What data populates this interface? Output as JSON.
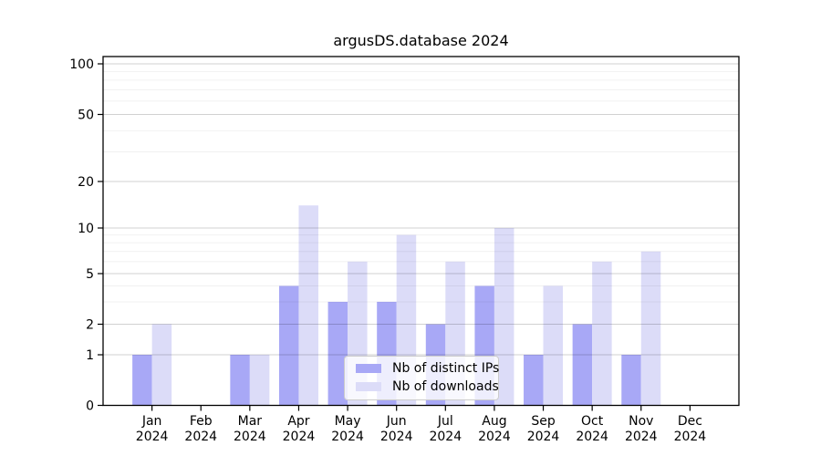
{
  "chart_data": {
    "type": "bar",
    "title": "argusDS.database 2024",
    "categories": [
      "Jan",
      "Feb",
      "Mar",
      "Apr",
      "May",
      "Jun",
      "Jul",
      "Aug",
      "Sep",
      "Oct",
      "Nov",
      "Dec"
    ],
    "category_year": "2024",
    "series": [
      {
        "name": "Nb of distinct IPs",
        "color": "#a8a8f6",
        "values": [
          1,
          0,
          1,
          4,
          3,
          3,
          2,
          4,
          1,
          2,
          1,
          0
        ]
      },
      {
        "name": "Nb of downloads",
        "color": "#dcdcf8",
        "values": [
          2,
          0,
          1,
          14,
          6,
          9,
          6,
          10,
          4,
          6,
          7,
          0
        ]
      }
    ],
    "yscale": "symlog",
    "yticks": [
      0,
      1,
      2,
      5,
      10,
      20,
      50,
      100
    ],
    "minor_yticks": [
      3,
      4,
      6,
      7,
      8,
      9,
      30,
      40,
      60,
      70,
      80,
      90
    ],
    "ylim": [
      0,
      120
    ],
    "xlabel": "",
    "ylabel": "",
    "grid": true,
    "legend_position": "lower center",
    "colors": {
      "major_grid": "rgba(0,0,0,0.18)",
      "minor_grid": "rgba(0,0,0,0.055)",
      "spine": "#000000",
      "tick_label": "#000000"
    }
  }
}
